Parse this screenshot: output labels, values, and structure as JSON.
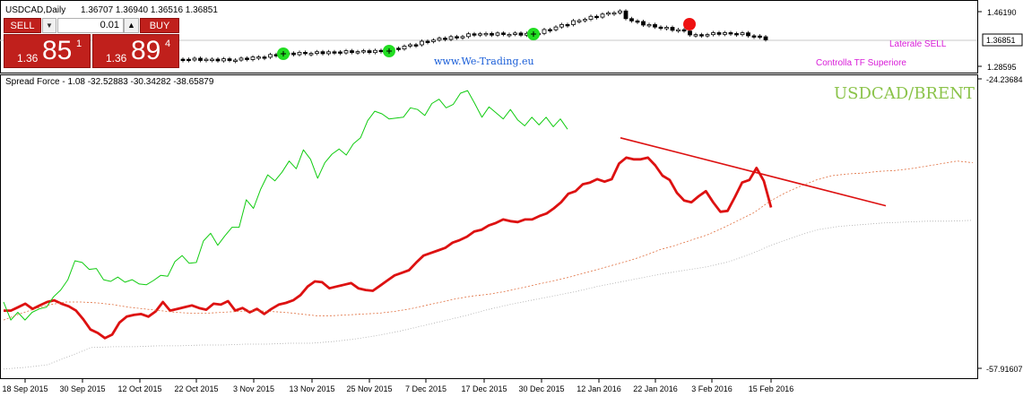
{
  "header": {
    "symbol_title": "USDCAD,Daily",
    "ohlc": "1.36707 1.36940 1.36516 1.36851"
  },
  "trade_panel": {
    "sell_label": "SELL",
    "buy_label": "BUY",
    "lot": "0.01",
    "sell_price": {
      "prefix": "1.36",
      "big": "85",
      "sup": "1"
    },
    "buy_price": {
      "prefix": "1.36",
      "big": "89",
      "sup": "4"
    },
    "dropdown_icon": "chevron-down-icon",
    "spin_icon": "chevron-up-icon"
  },
  "upper_chart": {
    "watermark": "www.We-Trading.eu",
    "label_laterale": "Laterale SELL",
    "label_controlla": "Controlla TF Superiore",
    "price_top": "1.46190",
    "price_current": "1.36851",
    "price_bottom": "1.28595",
    "colors": {
      "label": "#d81bd8",
      "watermark": "#1a5ed8",
      "green_signal": "#22dd22",
      "red_signal": "#ee1111"
    }
  },
  "lower_chart": {
    "indicator_title": "Spread Force - 1.08 -32.52883 -30.34282 -38.65879",
    "pair_label": "USDCAD/BRENT",
    "axis_top": "-24.23684",
    "axis_bottom": "-57.91607",
    "colors": {
      "red": "#dd1111",
      "green": "#11cc11",
      "orange": "#e07040",
      "gray": "#aaaaaa",
      "pair_label": "#8bc34a"
    }
  },
  "chart_data": [
    {
      "type": "candlestick",
      "title": "USDCAD,Daily",
      "ylim": [
        1.28595,
        1.4619
      ],
      "current_price": 1.36851,
      "signals": [
        {
          "date": "12 Nov 2015",
          "color": "green"
        },
        {
          "date": "26 Nov 2015",
          "color": "green"
        },
        {
          "date": "31 Dec 2015",
          "color": "green"
        },
        {
          "date": "3 Feb 2016",
          "color": "red"
        }
      ],
      "annotations": [
        "Laterale SELL",
        "Controlla TF Superiore"
      ]
    },
    {
      "type": "line",
      "title": "Spread Force - 1.08 -32.52883 -30.34282 -38.65879",
      "ylim": [
        -57.91607,
        -24.23684
      ],
      "x_ticks": [
        "18 Sep 2015",
        "30 Sep 2015",
        "12 Oct 2015",
        "22 Oct 2015",
        "3 Nov 2015",
        "13 Nov 2015",
        "25 Nov 2015",
        "7 Dec 2015",
        "17 Dec 2015",
        "30 Dec 2015",
        "12 Jan 2016",
        "22 Jan 2016",
        "3 Feb 2016",
        "15 Feb 2016"
      ],
      "series": [
        {
          "color": "red",
          "style": "thick",
          "values": [
            -51.2,
            -51.2,
            -50.8,
            -50.4,
            -51.0,
            -50.6,
            -50.2,
            -50.0,
            -50.4,
            -50.7,
            -51.2,
            -52.2,
            -53.4,
            -53.8,
            -54.4,
            -54.0,
            -52.6,
            -51.9,
            -51.7,
            -51.6,
            -51.9,
            -51.3,
            -50.2,
            -51.2,
            -51.0,
            -50.8,
            -50.6,
            -50.9,
            -51.1,
            -50.4,
            -50.5,
            -50.1,
            -51.2,
            -50.9,
            -51.4,
            -51.0,
            -51.6,
            -51.0,
            -50.5,
            -50.3,
            -50.0,
            -49.4,
            -48.4,
            -47.8,
            -47.9,
            -48.6,
            -48.4,
            -48.2,
            -48.0,
            -48.6,
            -48.8,
            -48.9,
            -48.3,
            -47.7,
            -47.1,
            -46.8,
            -46.5,
            -45.6,
            -44.8,
            -44.5,
            -44.2,
            -43.9,
            -43.3,
            -43.0,
            -42.6,
            -42.0,
            -41.8,
            -41.3,
            -41.0,
            -40.6,
            -40.8,
            -40.9,
            -40.6,
            -40.6,
            -40.2,
            -39.9,
            -39.3,
            -38.6,
            -37.6,
            -37.3,
            -36.5,
            -36.3,
            -35.9,
            -36.2,
            -35.9,
            -34.1,
            -33.4,
            -33.6,
            -33.6,
            -33.4,
            -34.3,
            -35.5,
            -36.0,
            -37.5,
            -38.4,
            -38.6,
            -37.9,
            -37.3,
            -38.6,
            -39.7,
            -39.6,
            -38.0,
            -36.3,
            -36.0,
            -34.6,
            -36.1,
            -39.2
          ]
        },
        {
          "color": "green",
          "style": "thin",
          "values": [
            -50.2,
            -52.3,
            -51.4,
            -52.3,
            -51.4,
            -51.0,
            -50.8,
            -49.6,
            -48.8,
            -47.6,
            -45.4,
            -45.6,
            -46.4,
            -46.3,
            -47.6,
            -47.8,
            -47.3,
            -47.9,
            -47.6,
            -48.1,
            -48.2,
            -47.7,
            -47.1,
            -47.2,
            -45.5,
            -44.8,
            -45.7,
            -45.6,
            -43.1,
            -42.2,
            -43.6,
            -42.5,
            -41.5,
            -41.5,
            -38.3,
            -39.3,
            -37.1,
            -35.4,
            -36.1,
            -35.1,
            -33.8,
            -34.7,
            -32.5,
            -33.6,
            -35.8,
            -34.0,
            -33.0,
            -32.4,
            -33.1,
            -31.8,
            -31.1,
            -29.1,
            -28.0,
            -28.3,
            -28.9,
            -28.8,
            -28.7,
            -27.6,
            -27.8,
            -28.5,
            -27.1,
            -26.6,
            -27.6,
            -27.2,
            -25.9,
            -25.6,
            -27.1,
            -28.7,
            -27.5,
            -28.2,
            -28.9,
            -27.8,
            -29.0,
            -29.7,
            -28.7,
            -29.6,
            -28.7,
            -29.8,
            -28.9,
            -30.1
          ]
        },
        {
          "color": "orange",
          "style": "dotted",
          "values": [
            -52.3,
            -51.6,
            -51.0,
            -50.5,
            -50.2,
            -50.2,
            -50.3,
            -50.5,
            -50.8,
            -51.0,
            -51.2,
            -51.4,
            -51.5,
            -51.5,
            -51.4,
            -51.3,
            -51.2,
            -51.3,
            -51.4,
            -51.6,
            -51.8,
            -51.8,
            -51.7,
            -51.6,
            -51.5,
            -51.3,
            -51.0,
            -50.6,
            -50.2,
            -49.8,
            -49.5,
            -49.3,
            -49.0,
            -48.6,
            -48.2,
            -47.8,
            -47.4,
            -46.9,
            -46.4,
            -45.9,
            -45.4,
            -44.8,
            -44.1,
            -43.6,
            -43.0,
            -42.4,
            -41.6,
            -40.7,
            -39.8,
            -38.5,
            -37.5,
            -36.7,
            -36.0,
            -35.5,
            -35.3,
            -35.2,
            -35.0,
            -34.9,
            -34.7,
            -34.4,
            -34.1,
            -33.8,
            -34.0
          ]
        },
        {
          "color": "gray",
          "style": "dotted",
          "values": [
            -58.0,
            -57.8,
            -57.5,
            -56.5,
            -55.5,
            -55.4,
            -55.4,
            -55.3,
            -55.3,
            -55.2,
            -55.2,
            -55.1,
            -55.1,
            -55.0,
            -55.0,
            -54.8,
            -54.5,
            -54.1,
            -53.6,
            -53.0,
            -52.4,
            -51.8,
            -51.1,
            -50.5,
            -50.0,
            -49.5,
            -49.0,
            -48.4,
            -47.9,
            -47.4,
            -46.9,
            -46.5,
            -46.1,
            -45.5,
            -44.6,
            -43.5,
            -42.6,
            -41.8,
            -41.4,
            -41.2,
            -41.0,
            -40.9,
            -40.8,
            -40.8,
            -40.7
          ]
        },
        {
          "color": "red",
          "style": "trendline",
          "values": [
            -31.1,
            -39.0
          ]
        }
      ]
    }
  ]
}
